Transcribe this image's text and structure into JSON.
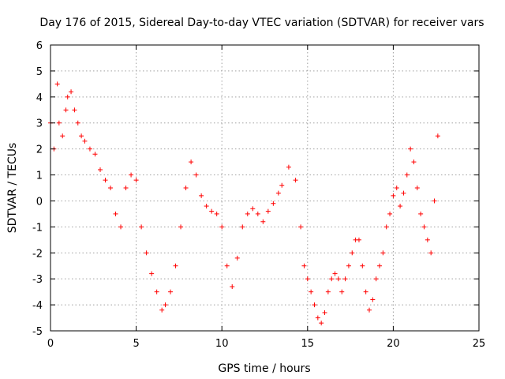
{
  "chart_data": {
    "type": "scatter",
    "title": "Day 176 of 2015, Sidereal Day-to-day VTEC variation (SDTVAR) for receiver vars",
    "xlabel": "GPS time / hours",
    "ylabel": "SDTVAR / TECUs",
    "xlim": [
      0,
      25
    ],
    "ylim": [
      -5,
      6
    ],
    "xticks": [
      "0",
      "5",
      "10",
      "15",
      "20",
      "25"
    ],
    "yticks": [
      "-5",
      "-4",
      "-3",
      "-2",
      "-1",
      "0",
      "1",
      "2",
      "3",
      "4",
      "5",
      "6"
    ],
    "grid": true,
    "marker": "plus",
    "color": "#ff0000",
    "series": [
      {
        "name": "SDTVAR",
        "x": [
          0.0,
          0.2,
          0.4,
          0.5,
          0.7,
          0.9,
          1.0,
          1.2,
          1.4,
          1.6,
          1.8,
          2.0,
          2.3,
          2.6,
          2.9,
          3.2,
          3.5,
          3.8,
          4.1,
          4.4,
          4.7,
          5.0,
          5.3,
          5.6,
          5.9,
          6.2,
          6.5,
          6.7,
          7.0,
          7.3,
          7.6,
          7.9,
          8.2,
          8.5,
          8.8,
          9.1,
          9.4,
          9.7,
          10.0,
          10.3,
          10.6,
          10.9,
          11.2,
          11.5,
          11.8,
          12.1,
          12.4,
          12.7,
          13.0,
          13.3,
          13.5,
          13.9,
          14.3,
          14.6,
          14.8,
          15.0,
          15.2,
          15.4,
          15.6,
          15.8,
          16.0,
          16.2,
          16.4,
          16.6,
          16.8,
          17.0,
          17.2,
          17.4,
          17.6,
          17.8,
          18.0,
          18.2,
          18.4,
          18.6,
          18.8,
          19.0,
          19.2,
          19.4,
          19.6,
          19.8,
          20.0,
          20.2,
          20.4,
          20.6,
          20.8,
          21.0,
          21.2,
          21.4,
          21.6,
          21.8,
          22.0,
          22.2,
          22.4,
          22.6
        ],
        "y": [
          3.0,
          2.0,
          4.5,
          3.0,
          2.5,
          3.5,
          4.0,
          4.2,
          3.5,
          3.0,
          2.5,
          2.3,
          2.0,
          1.8,
          1.2,
          0.8,
          0.5,
          -0.5,
          -1.0,
          0.5,
          1.0,
          0.8,
          -1.0,
          -2.0,
          -2.8,
          -3.5,
          -4.2,
          -4.0,
          -3.5,
          -2.5,
          -1.0,
          0.5,
          1.5,
          1.0,
          0.2,
          -0.2,
          -0.4,
          -0.5,
          -1.0,
          -2.5,
          -3.3,
          -2.2,
          -1.0,
          -0.5,
          -0.3,
          -0.5,
          -0.8,
          -0.4,
          -0.1,
          0.3,
          0.6,
          1.3,
          0.8,
          -1.0,
          -2.5,
          -3.0,
          -3.5,
          -4.0,
          -4.5,
          -4.7,
          -4.3,
          -3.5,
          -3.0,
          -2.8,
          -3.0,
          -3.5,
          -3.0,
          -2.5,
          -2.0,
          -1.5,
          -1.5,
          -2.5,
          -3.5,
          -4.2,
          -3.8,
          -3.0,
          -2.5,
          -2.0,
          -1.0,
          -0.5,
          0.2,
          0.5,
          -0.2,
          0.3,
          1.0,
          2.0,
          1.5,
          0.5,
          -0.5,
          -1.0,
          -1.5,
          -2.0,
          0.0,
          2.5
        ]
      }
    ]
  }
}
